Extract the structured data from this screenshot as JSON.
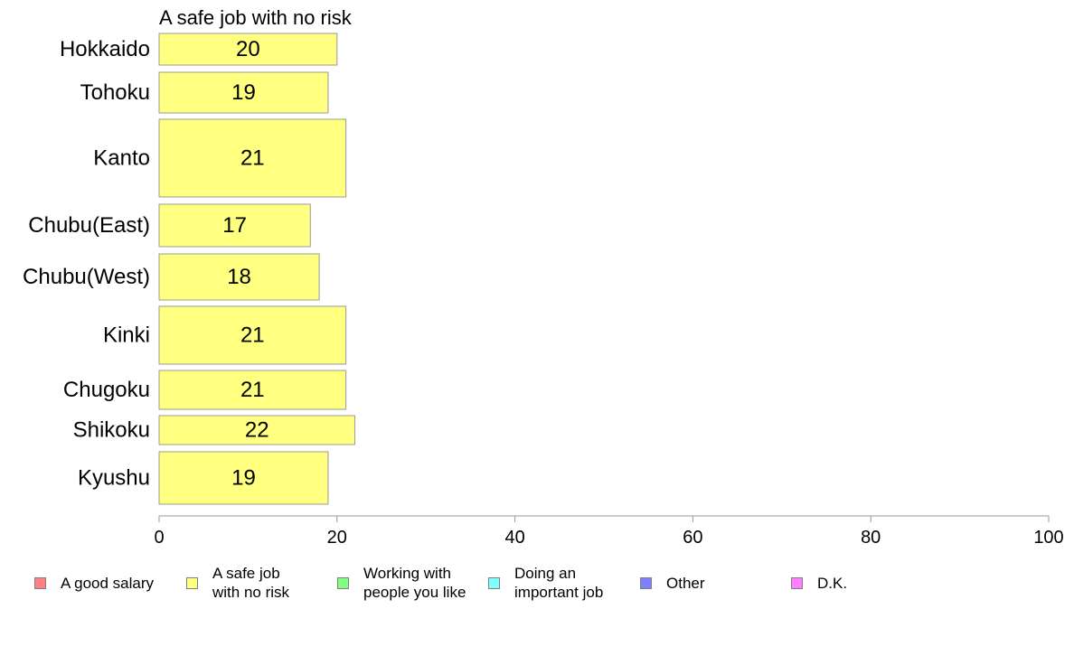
{
  "chart_data": {
    "type": "bar",
    "orientation": "horizontal",
    "title": "A safe job with no risk",
    "categories": [
      "Hokkaido",
      "Tohoku",
      "Kanto",
      "Chubu(East)",
      "Chubu(West)",
      "Kinki",
      "Chugoku",
      "Shikoku",
      "Kyushu"
    ],
    "values": [
      20,
      19,
      21,
      17,
      18,
      21,
      21,
      22,
      19
    ],
    "xlim": [
      0,
      100
    ],
    "xticks": [
      0,
      20,
      40,
      60,
      80,
      100
    ],
    "xticks_text": [
      "0",
      "20",
      "40",
      "60",
      "80",
      "100"
    ],
    "grid": false,
    "bar_color": "#ffff80",
    "legend_position": "bottom",
    "legend": [
      {
        "label": "A good salary",
        "color": "#ff8080"
      },
      {
        "label": "A safe job\nwith no risk",
        "color": "#ffff80"
      },
      {
        "label": "Working with\npeople you like",
        "color": "#80ff80"
      },
      {
        "label": "Doing an\nimportant job",
        "color": "#80ffff"
      },
      {
        "label": "Other",
        "color": "#8080ff"
      },
      {
        "label": "D.K.",
        "color": "#ff80ff"
      }
    ]
  }
}
